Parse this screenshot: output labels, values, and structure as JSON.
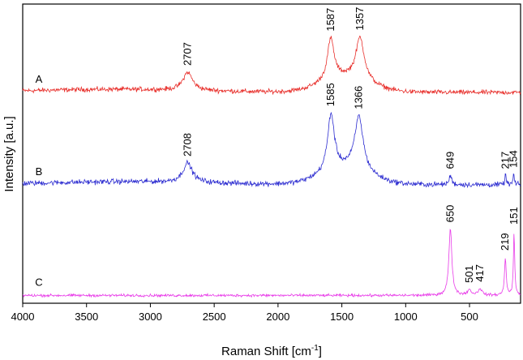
{
  "chart_data": {
    "type": "line",
    "title": "",
    "xlabel": "Raman Shift [cm",
    "xlabel_sup": "-1",
    "xlabel_end": "]",
    "ylabel": "Intensity [a.u.]",
    "xlim": [
      4000,
      100
    ],
    "x_reversed": true,
    "xticks": [
      {
        "value": 4000,
        "label": "4000"
      },
      {
        "value": 3500,
        "label": "3500"
      },
      {
        "value": 3000,
        "label": "3000"
      },
      {
        "value": 2500,
        "label": "2500"
      },
      {
        "value": 2000,
        "label": "2000"
      },
      {
        "value": 1500,
        "label": "1500"
      },
      {
        "value": 1000,
        "label": "1000"
      },
      {
        "value": 500,
        "label": "500"
      }
    ],
    "grid": false,
    "legend": "none",
    "series": [
      {
        "name": "A",
        "color": "#e8302c",
        "baseline": 8.1,
        "noise": 0.09,
        "broad": [
          {
            "center": 3300,
            "width": 900,
            "height": 0.12
          },
          {
            "center": 1470,
            "width": 260,
            "height": 0.55
          }
        ],
        "peaks": [
          {
            "position": 2707,
            "label": "2707",
            "height": 0.7,
            "width": 45
          },
          {
            "position": 1587,
            "label": "1587",
            "height": 1.6,
            "width": 32
          },
          {
            "position": 1357,
            "label": "1357",
            "height": 1.65,
            "width": 40
          }
        ]
      },
      {
        "name": "B",
        "color": "#2b2bd0",
        "baseline": 4.55,
        "noise": 0.1,
        "broad": [
          {
            "center": 3200,
            "width": 900,
            "height": 0.12
          },
          {
            "center": 1470,
            "width": 260,
            "height": 0.6
          }
        ],
        "peaks": [
          {
            "position": 2708,
            "label": "2708",
            "height": 0.75,
            "width": 45
          },
          {
            "position": 1585,
            "label": "1585",
            "height": 2.2,
            "width": 32
          },
          {
            "position": 1366,
            "label": "1366",
            "height": 2.1,
            "width": 40
          },
          {
            "position": 649,
            "label": "649",
            "height": 0.35,
            "width": 12
          },
          {
            "position": 217,
            "label": "217",
            "height": 0.35,
            "width": 7
          },
          {
            "position": 154,
            "label": "154",
            "height": 0.4,
            "width": 6
          }
        ]
      },
      {
        "name": "C",
        "color": "#e83ae8",
        "baseline": 0.3,
        "noise": 0.05,
        "broad": [],
        "peaks": [
          {
            "position": 650,
            "label": "650",
            "height": 2.55,
            "width": 14
          },
          {
            "position": 501,
            "label": "501",
            "height": 0.2,
            "width": 18
          },
          {
            "position": 417,
            "label": "417",
            "height": 0.25,
            "width": 18
          },
          {
            "position": 219,
            "label": "219",
            "height": 1.45,
            "width": 8
          },
          {
            "position": 151,
            "label": "151",
            "height": 2.45,
            "width": 6
          }
        ]
      }
    ]
  }
}
